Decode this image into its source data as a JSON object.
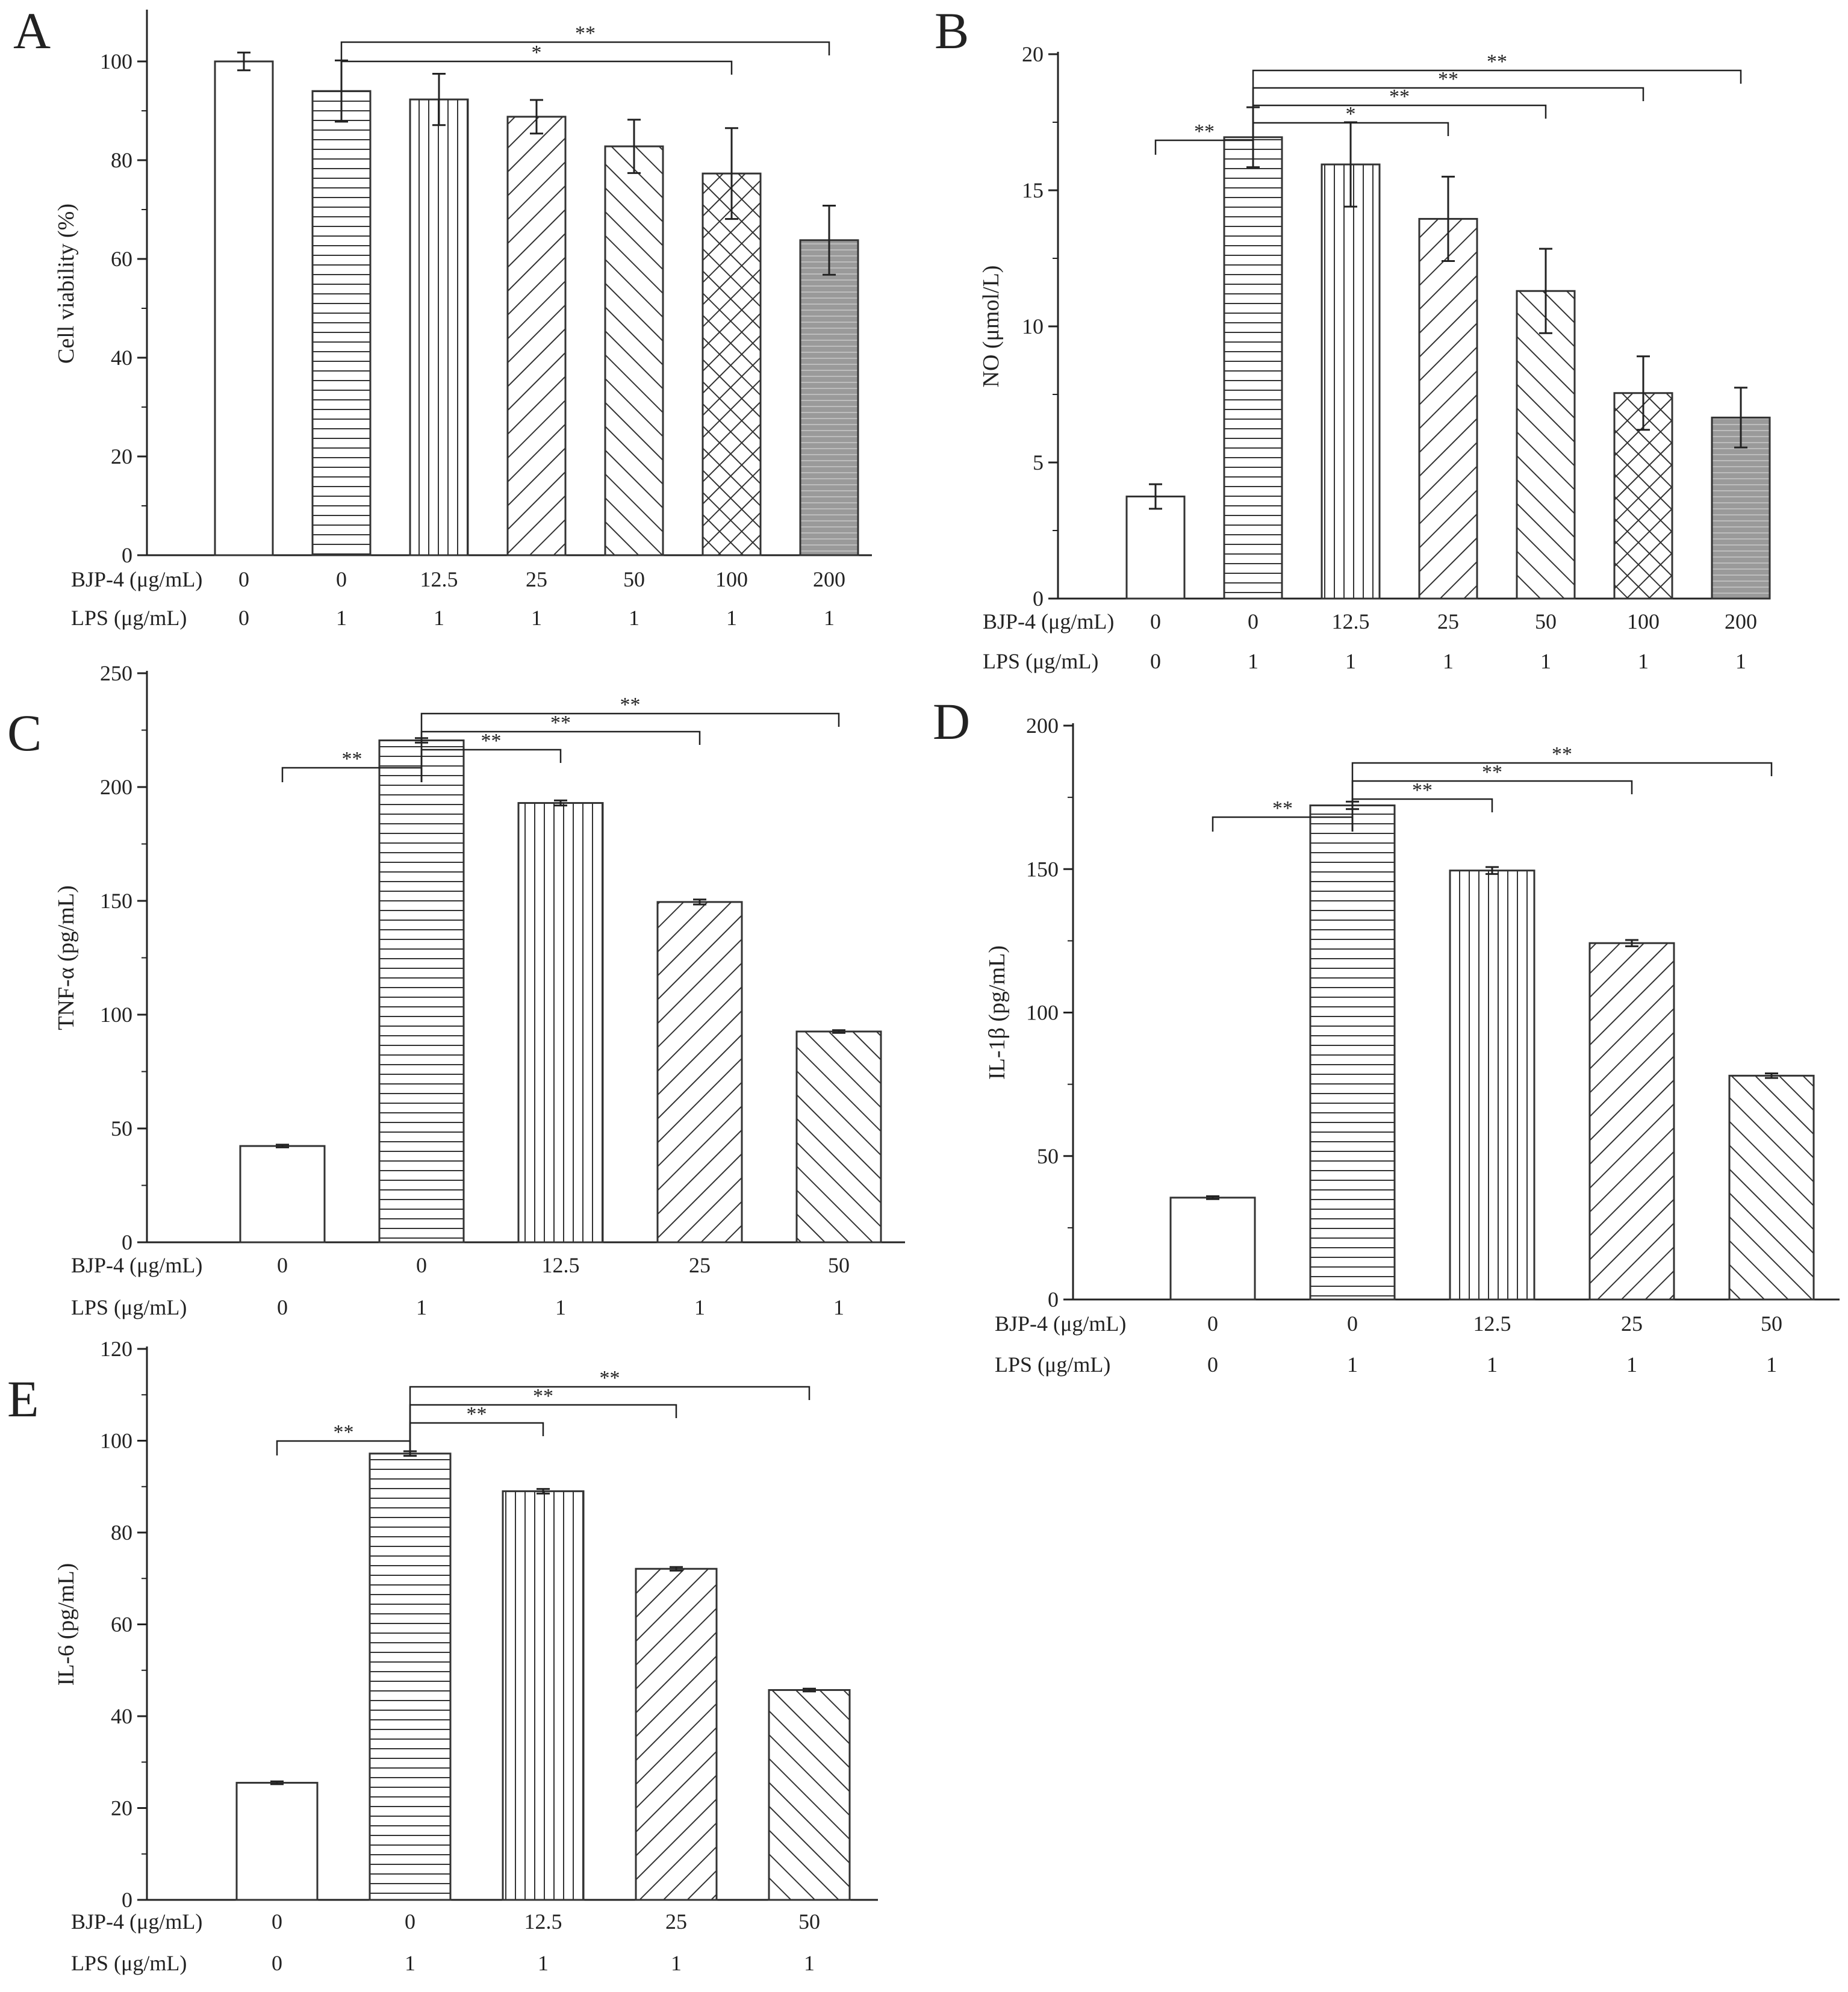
{
  "figure": {
    "row_labels": [
      "BJP-4 (μg/mL)",
      "LPS (μg/mL)"
    ],
    "colors": {
      "ink": "#222222",
      "stroke": "#333333",
      "fill": "#ffffff",
      "gray_fill": "#9a9a9a"
    }
  },
  "chart_data": [
    {
      "panel": "A",
      "type": "bar",
      "ylabel": "Cell viability (%)",
      "ylim": [
        0,
        110
      ],
      "yticks": [
        0,
        20,
        40,
        60,
        80,
        100
      ],
      "categories_bjp": [
        "0",
        "0",
        "12.5",
        "25",
        "50",
        "100",
        "200"
      ],
      "categories_lps": [
        "0",
        "1",
        "1",
        "1",
        "1",
        "1",
        "1"
      ],
      "values": [
        100,
        94,
        92.3,
        88.8,
        82.8,
        77.3,
        63.8
      ],
      "errors": [
        1.8,
        6.2,
        5.2,
        3.4,
        5.4,
        9.2,
        7.0
      ],
      "patterns": [
        "none",
        "hlines",
        "vlines",
        "diag-fwd",
        "diag-back",
        "crosshatch",
        "gray"
      ],
      "significance": [
        {
          "from": 1,
          "to": 5,
          "label": "*"
        },
        {
          "from": 1,
          "to": 6,
          "label": "**"
        }
      ]
    },
    {
      "panel": "B",
      "type": "bar",
      "ylabel": "NO (μmol/L)",
      "ylim": [
        0,
        20
      ],
      "yticks": [
        0,
        5,
        10,
        15,
        20
      ],
      "categories_bjp": [
        "0",
        "0",
        "12.5",
        "25",
        "50",
        "100",
        "200"
      ],
      "categories_lps": [
        "0",
        "1",
        "1",
        "1",
        "1",
        "1",
        "1"
      ],
      "values": [
        3.75,
        16.95,
        15.95,
        13.95,
        11.3,
        7.55,
        6.65
      ],
      "errors": [
        0.45,
        1.1,
        1.55,
        1.55,
        1.55,
        1.35,
        1.1
      ],
      "patterns": [
        "none",
        "hlines",
        "vlines",
        "diag-fwd",
        "diag-back",
        "crosshatch",
        "gray"
      ],
      "significance": [
        {
          "from": 0,
          "to": 1,
          "label": "**"
        },
        {
          "from": 1,
          "to": 3,
          "label": "*"
        },
        {
          "from": 1,
          "to": 4,
          "label": "**"
        },
        {
          "from": 1,
          "to": 5,
          "label": "**"
        },
        {
          "from": 1,
          "to": 6,
          "label": "**"
        }
      ]
    },
    {
      "panel": "C",
      "type": "bar",
      "ylabel": "TNF-α (pg/mL)",
      "ylim": [
        0,
        250
      ],
      "yticks": [
        0,
        50,
        100,
        150,
        200,
        250
      ],
      "categories_bjp": [
        "0",
        "0",
        "12.5",
        "25",
        "50"
      ],
      "categories_lps": [
        "0",
        "1",
        "1",
        "1",
        "1"
      ],
      "values": [
        42.3,
        220.5,
        193,
        149.5,
        92.6
      ],
      "errors": [
        0.6,
        1.0,
        1.1,
        1.1,
        0.6
      ],
      "patterns": [
        "none",
        "hlines",
        "vlines",
        "diag-fwd",
        "diag-back"
      ],
      "significance": [
        {
          "from": 0,
          "to": 1,
          "label": "**"
        },
        {
          "from": 1,
          "to": 2,
          "label": "**"
        },
        {
          "from": 1,
          "to": 3,
          "label": "**"
        },
        {
          "from": 1,
          "to": 4,
          "label": "**"
        }
      ]
    },
    {
      "panel": "D",
      "type": "bar",
      "ylabel": "IL-1β (pg/mL)",
      "ylim": [
        0,
        200
      ],
      "yticks": [
        0,
        50,
        100,
        150,
        200
      ],
      "categories_bjp": [
        "0",
        "0",
        "12.5",
        "25",
        "50"
      ],
      "categories_lps": [
        "0",
        "1",
        "1",
        "1",
        "1"
      ],
      "values": [
        35.5,
        172.2,
        149.5,
        124.2,
        78
      ],
      "errors": [
        0.5,
        1.3,
        1.2,
        1.1,
        0.8
      ],
      "patterns": [
        "none",
        "hlines",
        "vlines",
        "diag-fwd",
        "diag-back"
      ],
      "significance": [
        {
          "from": 0,
          "to": 1,
          "label": "**"
        },
        {
          "from": 1,
          "to": 2,
          "label": "**"
        },
        {
          "from": 1,
          "to": 3,
          "label": "**"
        },
        {
          "from": 1,
          "to": 4,
          "label": "**"
        }
      ]
    },
    {
      "panel": "E",
      "type": "bar",
      "ylabel": "IL-6 (pg/mL)",
      "ylim": [
        0,
        120
      ],
      "yticks": [
        0,
        20,
        40,
        60,
        80,
        100,
        120
      ],
      "categories_bjp": [
        "0",
        "0",
        "12.5",
        "25",
        "50"
      ],
      "categories_lps": [
        "0",
        "1",
        "1",
        "1",
        "1"
      ],
      "values": [
        25.5,
        97.2,
        89,
        72.1,
        45.7
      ],
      "errors": [
        0.3,
        0.5,
        0.5,
        0.4,
        0.3
      ],
      "patterns": [
        "none",
        "hlines",
        "vlines",
        "diag-fwd",
        "diag-back"
      ],
      "significance": [
        {
          "from": 0,
          "to": 1,
          "label": "**"
        },
        {
          "from": 1,
          "to": 2,
          "label": "**"
        },
        {
          "from": 1,
          "to": 3,
          "label": "**"
        },
        {
          "from": 1,
          "to": 4,
          "label": "**"
        }
      ]
    }
  ]
}
